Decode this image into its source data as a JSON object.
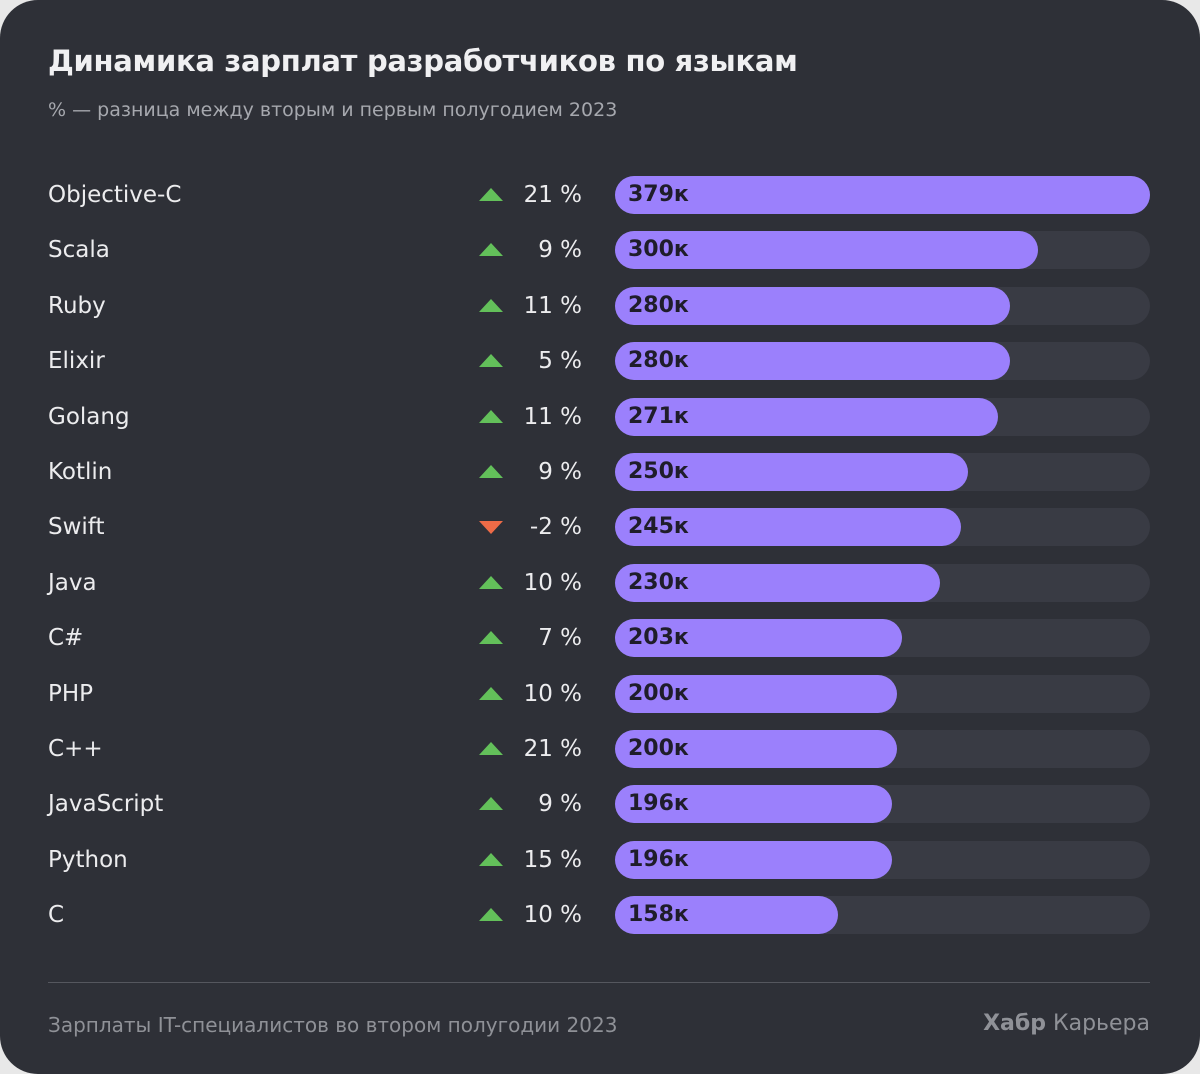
{
  "title": "Динамика зарплат разработчиков по языкам",
  "subtitle": "% — разница между вторым и первым полугодием 2023",
  "chart_data": {
    "type": "bar",
    "orientation": "horizontal",
    "unit": "к",
    "xlim": [
      0,
      379
    ],
    "categories": [
      "Objective-C",
      "Scala",
      "Ruby",
      "Elixir",
      "Golang",
      "Kotlin",
      "Swift",
      "Java",
      "C#",
      "PHP",
      "C++",
      "JavaScript",
      "Python",
      "C"
    ],
    "values": [
      379,
      300,
      280,
      280,
      271,
      250,
      245,
      230,
      203,
      200,
      200,
      196,
      196,
      158
    ],
    "value_labels": [
      "379к",
      "300к",
      "280к",
      "280к",
      "271к",
      "250к",
      "245к",
      "230к",
      "203к",
      "200к",
      "200к",
      "196к",
      "196к",
      "158к"
    ],
    "changes": [
      21,
      9,
      11,
      5,
      11,
      9,
      -2,
      10,
      7,
      10,
      21,
      9,
      15,
      10
    ],
    "change_labels": [
      "21 %",
      "9 %",
      "11 %",
      "5 %",
      "11 %",
      "9 %",
      "-2 %",
      "10 %",
      "7 %",
      "10 %",
      "21 %",
      "9 %",
      "15 %",
      "10 %"
    ],
    "colors": {
      "bar": "#9b80fc",
      "track": "#393b44",
      "up": "#63c05a",
      "down": "#ee6b47",
      "background": "#2e3037"
    }
  },
  "footer": {
    "source": "Зарплаты IT-специалистов во втором полугодии 2023",
    "brand_bold": "Хабр",
    "brand_rest": "Карьера"
  }
}
